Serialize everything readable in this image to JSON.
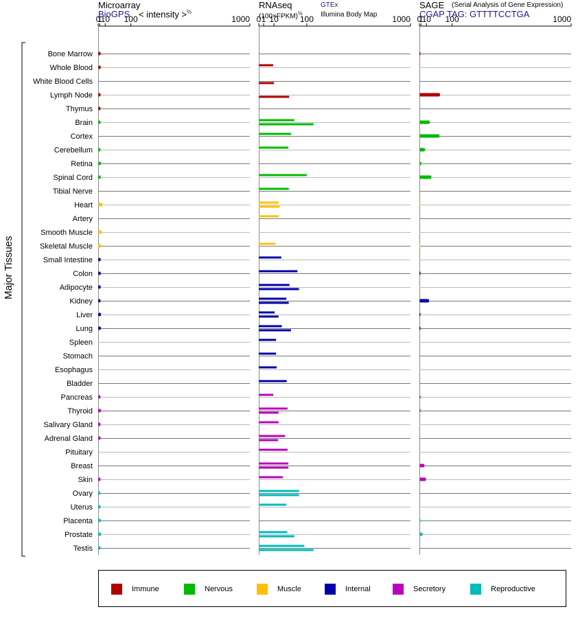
{
  "panels": {
    "microarray": {
      "title": "Microarray",
      "source": "BioGPS",
      "unit_prefix": "< intensity >",
      "unit_exp": "⅔"
    },
    "rnaseq": {
      "title": "RNAseq",
      "unit": "(100×FPKM)",
      "unit_exp": "½",
      "source1": "GTEx",
      "source2": "Illumina Body Map"
    },
    "sage": {
      "title": "SAGE",
      "subtitle": "(Serial Analysis of Gene Expression)",
      "tag": "CGAP TAG: GTTTTCCTGA"
    }
  },
  "axis_label": "Major Tissues",
  "colors": {
    "Immune": "#b00000",
    "Nervous": "#00bb00",
    "Muscle": "#ffc000",
    "Internal": "#0000aa",
    "Secretory": "#bb00bb",
    "Reproductive": "#00bbbb"
  },
  "legend": [
    {
      "label": "Immune",
      "group": "Immune"
    },
    {
      "label": "Nervous",
      "group": "Nervous"
    },
    {
      "label": "Muscle",
      "group": "Muscle"
    },
    {
      "label": "Internal",
      "group": "Internal"
    },
    {
      "label": "Secretory",
      "group": "Secretory"
    },
    {
      "label": "Reproductive",
      "group": "Reproductive"
    }
  ],
  "chart_data": {
    "type": "bar",
    "orientation": "horizontal",
    "x_ticks": [
      "0",
      "1",
      "10",
      "100",
      "1000"
    ],
    "x_tick_values": [
      0,
      1,
      10,
      100,
      1000
    ],
    "xlim": [
      0,
      1000
    ],
    "categories": [
      "Bone Marrow",
      "Whole Blood",
      "White Blood Cells",
      "Lymph Node",
      "Thymus",
      "Brain",
      "Cortex",
      "Cerebellum",
      "Retina",
      "Spinal Cord",
      "Tibial Nerve",
      "Heart",
      "Artery",
      "Smooth Muscle",
      "Skeletal Muscle",
      "Small Intestine",
      "Colon",
      "Adipocyte",
      "Kidney",
      "Liver",
      "Lung",
      "Spleen",
      "Stomach",
      "Esophagus",
      "Bladder",
      "Pancreas",
      "Thyroid",
      "Salivary Gland",
      "Adrenal Gland",
      "Pituitary",
      "Breast",
      "Skin",
      "Ovary",
      "Uterus",
      "Placenta",
      "Prostate",
      "Testis"
    ],
    "groups": [
      "Immune",
      "Immune",
      "Immune",
      "Immune",
      "Immune",
      "Nervous",
      "Nervous",
      "Nervous",
      "Nervous",
      "Nervous",
      "Nervous",
      "Muscle",
      "Muscle",
      "Muscle",
      "Muscle",
      "Internal",
      "Internal",
      "Internal",
      "Internal",
      "Internal",
      "Internal",
      "Internal",
      "Internal",
      "Internal",
      "Internal",
      "Secretory",
      "Secretory",
      "Secretory",
      "Secretory",
      "Secretory",
      "Secretory",
      "Secretory",
      "Reproductive",
      "Reproductive",
      "Reproductive",
      "Reproductive",
      "Reproductive"
    ],
    "series": [
      {
        "panel": "microarray",
        "values": [
          2.1,
          2.2,
          null,
          2.0,
          1.9,
          2.0,
          null,
          1.9,
          2.5,
          2.2,
          null,
          4.7,
          null,
          3.3,
          2.8,
          2.1,
          2.2,
          2.1,
          1.9,
          2.5,
          2.4,
          null,
          null,
          null,
          null,
          1.9,
          2.5,
          1.9,
          2.0,
          null,
          null,
          1.9,
          1.6,
          2.0,
          2.2,
          2.5,
          2.0
        ]
      },
      {
        "panel": "rnaseq",
        "sub": "GTEx",
        "values": [
          null,
          9,
          null,
          null,
          null,
          55,
          45,
          38,
          null,
          100,
          39,
          17,
          17,
          null,
          12,
          22,
          65,
          41,
          33,
          11,
          23,
          13,
          13,
          14,
          34,
          9,
          36,
          17,
          30,
          36,
          38,
          25,
          70,
          33,
          null,
          35,
          90
        ]
      },
      {
        "panel": "rnaseq",
        "sub": "Illumina Body Map",
        "values": [
          null,
          null,
          10,
          40,
          null,
          130,
          null,
          null,
          null,
          null,
          null,
          19,
          null,
          null,
          null,
          null,
          null,
          70,
          39,
          17,
          45,
          null,
          null,
          null,
          null,
          null,
          17,
          null,
          16,
          null,
          38,
          null,
          70,
          null,
          null,
          55,
          130
        ]
      },
      {
        "panel": "sage",
        "values": [
          0.1,
          null,
          null,
          50,
          null,
          18,
          48,
          7,
          1.2,
          22,
          null,
          0.05,
          null,
          null,
          0.05,
          null,
          0.1,
          null,
          16,
          0.1,
          0.1,
          null,
          null,
          null,
          null,
          0.1,
          0.1,
          null,
          null,
          null,
          6,
          9,
          null,
          null,
          0.1,
          3,
          null
        ]
      }
    ]
  }
}
